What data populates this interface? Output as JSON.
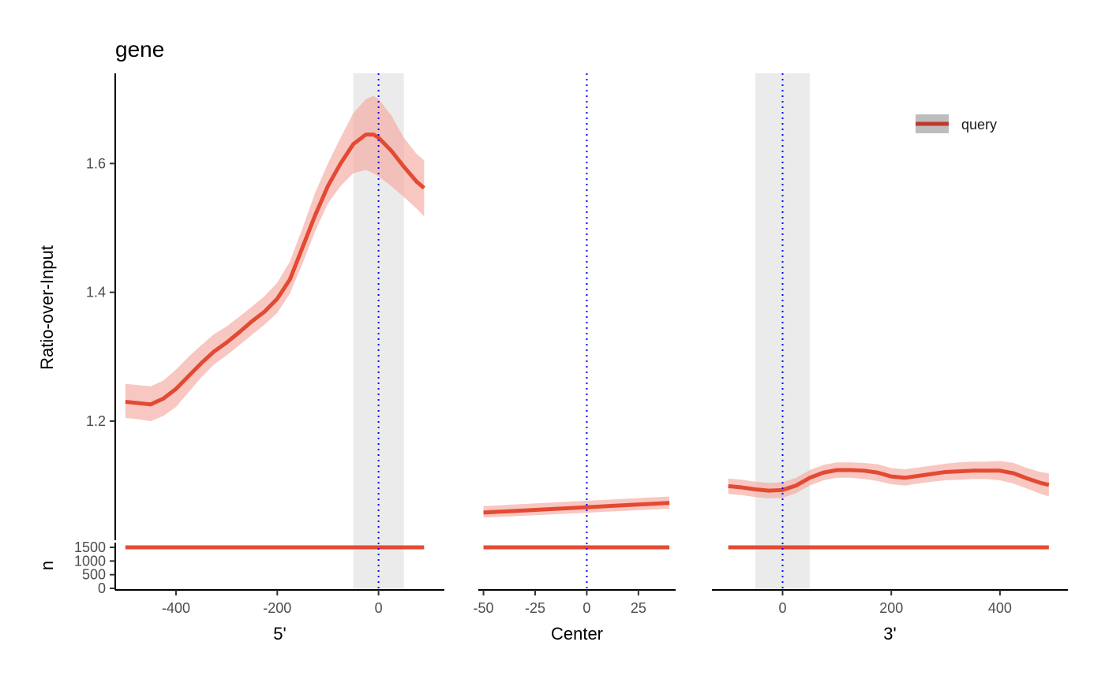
{
  "chart_data": {
    "type": "line",
    "title": "gene",
    "ylabel": "Ratio-over-Input",
    "n_label": "n",
    "legend": {
      "label": "query",
      "position": "top-right"
    },
    "colors": {
      "line": "#e34a33",
      "ribbon": "#f4a9a0",
      "center_line": "#0000ff",
      "shade": "#ebebeb",
      "legend_key_bg": "#bdbdbd",
      "legend_line": "#c0392b"
    },
    "ylim": [
      1.015,
      1.74
    ],
    "yticks": [
      1.2,
      1.4,
      1.6
    ],
    "n_ylim": [
      0,
      1500
    ],
    "n_yticks": [
      0,
      500,
      1000,
      1500
    ],
    "panels": [
      {
        "id": "five",
        "xlabel": "5'",
        "xlim": [
          -520,
          130
        ],
        "xticks": [
          -400,
          -200,
          0
        ],
        "shade": [
          -50,
          50
        ],
        "center": 0,
        "x": [
          -500,
          -475,
          -450,
          -425,
          -400,
          -375,
          -350,
          -325,
          -300,
          -275,
          -250,
          -225,
          -200,
          -175,
          -150,
          -125,
          -100,
          -75,
          -50,
          -25,
          -10,
          0,
          25,
          50,
          75,
          90
        ],
        "y": [
          1.23,
          1.228,
          1.226,
          1.235,
          1.25,
          1.27,
          1.29,
          1.308,
          1.322,
          1.338,
          1.355,
          1.37,
          1.39,
          1.42,
          1.47,
          1.52,
          1.565,
          1.6,
          1.63,
          1.645,
          1.645,
          1.64,
          1.62,
          1.595,
          1.572,
          1.562
        ],
        "lower": [
          1.205,
          1.203,
          1.2,
          1.208,
          1.222,
          1.245,
          1.268,
          1.288,
          1.302,
          1.318,
          1.334,
          1.35,
          1.368,
          1.398,
          1.445,
          1.495,
          1.538,
          1.565,
          1.585,
          1.59,
          1.585,
          1.58,
          1.565,
          1.548,
          1.53,
          1.518
        ],
        "upper": [
          1.258,
          1.256,
          1.254,
          1.263,
          1.28,
          1.3,
          1.318,
          1.335,
          1.347,
          1.362,
          1.378,
          1.394,
          1.415,
          1.448,
          1.5,
          1.555,
          1.6,
          1.64,
          1.678,
          1.7,
          1.705,
          1.7,
          1.675,
          1.64,
          1.615,
          1.605
        ],
        "n": [
          1500,
          1500
        ]
      },
      {
        "id": "center",
        "xlabel": "Center",
        "xlim": [
          -52.5,
          43
        ],
        "xticks": [
          -50,
          -25,
          0,
          25
        ],
        "center": 0,
        "x": [
          -50,
          40
        ],
        "y": [
          1.058,
          1.073
        ],
        "lower": [
          1.05,
          1.064
        ],
        "upper": [
          1.068,
          1.083
        ],
        "n": [
          1500,
          1500
        ]
      },
      {
        "id": "three",
        "xlabel": "3'",
        "xlim": [
          -130,
          525
        ],
        "xticks": [
          0,
          200,
          400
        ],
        "shade": [
          -50,
          50
        ],
        "center": 0,
        "x": [
          -100,
          -75,
          -50,
          -25,
          0,
          25,
          50,
          75,
          100,
          125,
          150,
          175,
          200,
          225,
          250,
          275,
          300,
          325,
          350,
          375,
          400,
          425,
          450,
          475,
          490
        ],
        "y": [
          1.099,
          1.097,
          1.094,
          1.092,
          1.093,
          1.1,
          1.112,
          1.12,
          1.124,
          1.124,
          1.123,
          1.12,
          1.114,
          1.112,
          1.115,
          1.118,
          1.121,
          1.122,
          1.123,
          1.123,
          1.123,
          1.119,
          1.111,
          1.104,
          1.101
        ],
        "lower": [
          1.087,
          1.085,
          1.082,
          1.08,
          1.081,
          1.088,
          1.1,
          1.108,
          1.112,
          1.112,
          1.11,
          1.107,
          1.102,
          1.1,
          1.103,
          1.106,
          1.108,
          1.109,
          1.11,
          1.11,
          1.108,
          1.103,
          1.095,
          1.087,
          1.083
        ],
        "upper": [
          1.111,
          1.109,
          1.106,
          1.104,
          1.105,
          1.112,
          1.124,
          1.132,
          1.136,
          1.136,
          1.135,
          1.133,
          1.127,
          1.125,
          1.128,
          1.131,
          1.134,
          1.136,
          1.137,
          1.137,
          1.138,
          1.135,
          1.127,
          1.121,
          1.119
        ],
        "n": [
          1500,
          1500
        ]
      }
    ]
  }
}
